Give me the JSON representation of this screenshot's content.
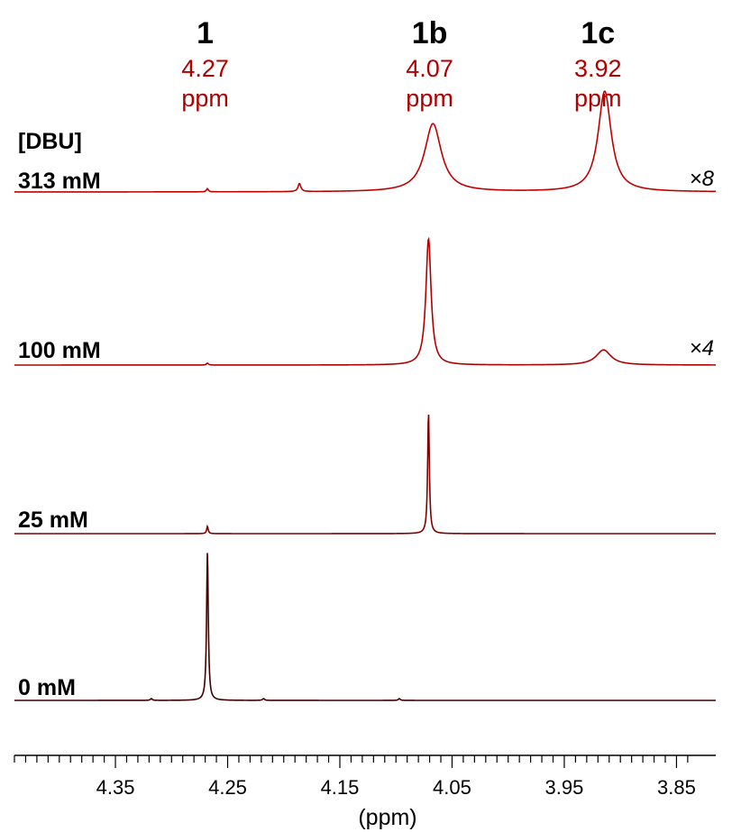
{
  "chart_data": {
    "type": "line",
    "subtype": "stacked NMR spectra",
    "title": "",
    "xlabel": "(ppm)",
    "x_reversed": true,
    "xlim": [
      4.44,
      3.815
    ],
    "x_ticks": [
      {
        "value": 4.35,
        "label": "4.35"
      },
      {
        "value": 4.25,
        "label": "4.25"
      },
      {
        "value": 4.15,
        "label": "4.15"
      },
      {
        "value": 4.05,
        "label": "4.05"
      },
      {
        "value": 3.95,
        "label": "3.95"
      },
      {
        "value": 3.85,
        "label": "3.85"
      }
    ],
    "grid": false,
    "stack_label": "[DBU]",
    "peak_labels": [
      {
        "name": "1",
        "shift_value": 4.27,
        "shift": "4.27",
        "unit": "ppm"
      },
      {
        "name": "1b",
        "shift_value": 4.07,
        "shift": "4.07",
        "unit": "ppm"
      },
      {
        "name": "1c",
        "shift_value": 3.92,
        "shift": "3.92",
        "unit": "ppm"
      }
    ],
    "series": [
      {
        "name": "313 mM",
        "color": "#c00000",
        "multiplier": "×8",
        "peaks": [
          {
            "x": 4.067,
            "height": 0.42,
            "width": 0.009
          },
          {
            "x": 3.914,
            "height": 0.62,
            "width": 0.007
          },
          {
            "x": 4.186,
            "height": 0.05,
            "width": 0.0015
          },
          {
            "x": 4.268,
            "height": 0.02,
            "width": 0.001
          }
        ]
      },
      {
        "name": "100 mM",
        "color": "#b00000",
        "multiplier": "×4",
        "peaks": [
          {
            "x": 4.071,
            "height": 1.0,
            "width": 0.0028
          },
          {
            "x": 3.915,
            "height": 0.12,
            "width": 0.008
          },
          {
            "x": 4.268,
            "height": 0.015,
            "width": 0.001
          }
        ]
      },
      {
        "name": "25 mM",
        "color": "#800000",
        "multiplier": "",
        "peaks": [
          {
            "x": 4.071,
            "height": 1.0,
            "width": 0.0009
          },
          {
            "x": 4.268,
            "height": 0.06,
            "width": 0.0008
          }
        ]
      },
      {
        "name": "0 mM",
        "color": "#400000",
        "multiplier": "",
        "peaks": [
          {
            "x": 4.268,
            "height": 1.0,
            "width": 0.0009
          },
          {
            "x": 4.318,
            "height": 0.012,
            "width": 0.001
          },
          {
            "x": 4.218,
            "height": 0.012,
            "width": 0.001
          },
          {
            "x": 4.097,
            "height": 0.012,
            "width": 0.001
          }
        ]
      }
    ]
  }
}
